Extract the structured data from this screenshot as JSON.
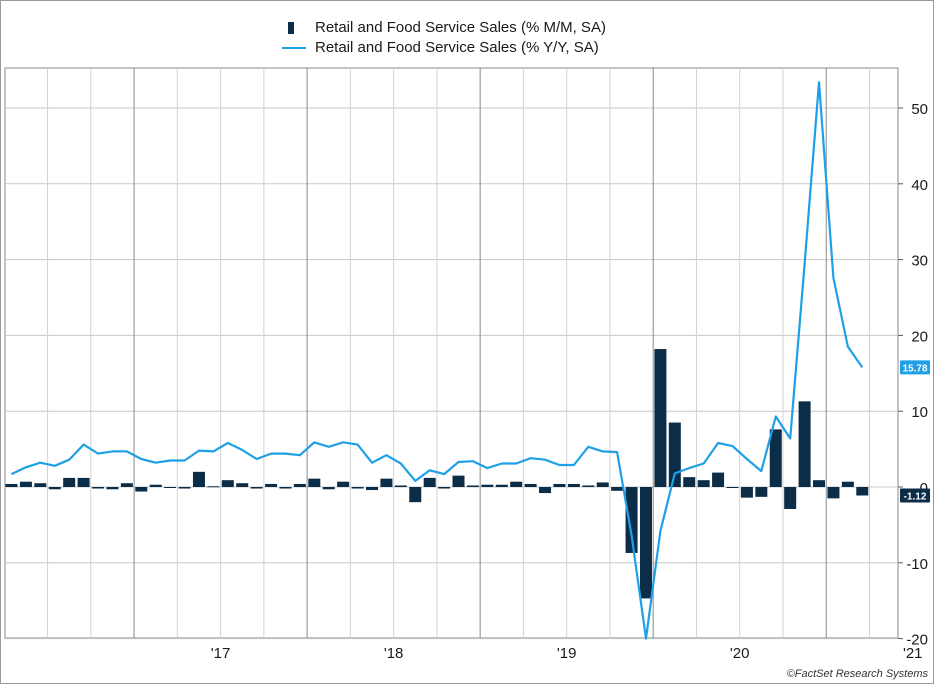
{
  "chart_data": {
    "type": "bar+line",
    "x_tick_labels": [
      "'17",
      "'18",
      "'19",
      "'20",
      "'21"
    ],
    "y_tick_labels": [
      "50",
      "40",
      "30",
      "20",
      "10",
      "0",
      "-10",
      "-20"
    ],
    "ylim": [
      -20,
      55
    ],
    "grid": true,
    "legend_position": "top",
    "series": [
      {
        "name": "Retail and Food Service Sales (% M/M, SA)",
        "kind": "bar",
        "color": "#0c2d48",
        "start": "2016-04",
        "values": [
          0.4,
          0.7,
          0.5,
          -0.3,
          1.2,
          1.2,
          -0.2,
          -0.3,
          0.5,
          -0.6,
          0.3,
          -0.1,
          -0.2,
          2.0,
          0.1,
          0.9,
          0.5,
          -0.2,
          0.4,
          -0.2,
          0.4,
          1.1,
          -0.3,
          0.7,
          -0.2,
          -0.4,
          1.1,
          0.2,
          -2.0,
          1.2,
          -0.2,
          1.5,
          0.2,
          0.3,
          0.3,
          0.7,
          0.4,
          -0.8,
          0.4,
          0.4,
          0.2,
          0.6,
          -0.5,
          -8.7,
          -14.7,
          18.2,
          8.5,
          1.3,
          0.9,
          1.9,
          -0.1,
          -1.4,
          -1.3,
          7.6,
          -2.9,
          11.3,
          0.9,
          -1.5,
          0.7,
          -1.12
        ],
        "last_value_label": "-1.12"
      },
      {
        "name": "Retail and Food Service Sales (% Y/Y, SA)",
        "kind": "line",
        "color": "#1fa0e6",
        "start": "2016-04",
        "values": [
          1.7,
          2.6,
          3.2,
          2.8,
          3.6,
          5.6,
          4.4,
          4.7,
          4.7,
          3.7,
          3.2,
          3.5,
          3.5,
          4.8,
          4.7,
          5.8,
          4.9,
          3.7,
          4.4,
          4.4,
          4.2,
          5.9,
          5.3,
          5.9,
          5.6,
          3.2,
          4.2,
          3.1,
          0.8,
          2.2,
          1.7,
          3.3,
          3.4,
          2.5,
          3.1,
          3.1,
          3.8,
          3.6,
          2.9,
          2.9,
          5.3,
          4.7,
          4.6,
          -6.4,
          -20.0,
          -5.8,
          1.8,
          2.5,
          3.1,
          5.8,
          5.4,
          3.7,
          2.1,
          9.3,
          6.4,
          29.4,
          53.4,
          27.6,
          18.5,
          15.78
        ],
        "last_value_label": "15.78"
      }
    ]
  },
  "copyright": "©FactSet Research Systems"
}
